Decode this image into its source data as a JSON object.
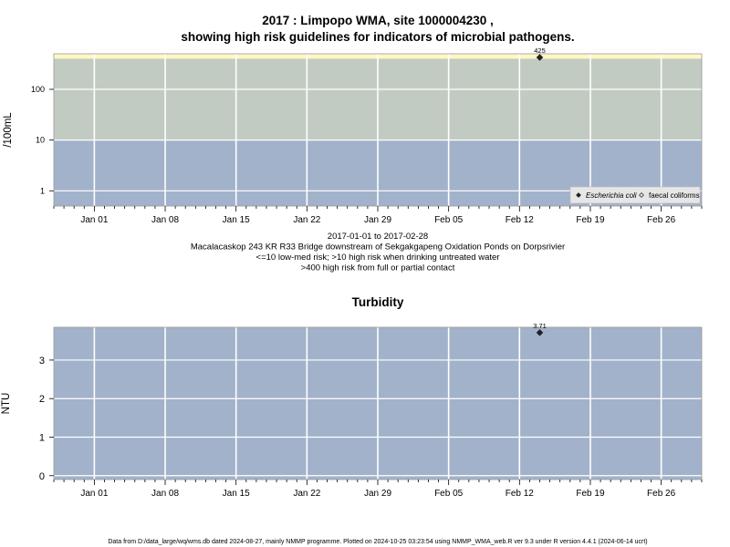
{
  "title_line1": "2017 : Limpopo WMA, site 1000004230 ,",
  "title_line2": "showing high risk guidelines for indicators of microbial pathogens.",
  "footer": "Data from D:/data_large/wq/wms.db dated 2024-08-27, mainly NMMP programme. Plotted on 2024-10-25 03:23:54 using NMMP_WMA_web.R ver 9.3 under R version 4.4.1 (2024-06-14 ucrt)",
  "colors": {
    "panel_bg": "#a2b2cb",
    "band_med": "#c2cbc2",
    "band_high": "#fff7c4",
    "grid": "#ffffff",
    "point": "#222222"
  },
  "chart_data": [
    {
      "type": "scatter",
      "title": "",
      "xlabel": "",
      "ylabel": "/100mL",
      "y_scale": "log",
      "x_range": [
        "2016-12-28",
        "2017-03-02"
      ],
      "y_range_log10": [
        -0.3,
        2.7
      ],
      "x_ticks": [
        "2017-01-01",
        "2017-01-08",
        "2017-01-15",
        "2017-01-22",
        "2017-01-29",
        "2017-02-05",
        "2017-02-12",
        "2017-02-19",
        "2017-02-26"
      ],
      "x_tick_labels": [
        "Jan 01",
        "Jan 08",
        "Jan 15",
        "Jan 22",
        "Jan 29",
        "Feb 05",
        "Feb 12",
        "Feb 19",
        "Feb 26"
      ],
      "y_ticks": [
        1,
        10,
        100
      ],
      "y_tick_labels": [
        "1",
        "10",
        "100"
      ],
      "bands": [
        {
          "from": null,
          "to": 10,
          "color": "#a2b2cb"
        },
        {
          "from": 10,
          "to": 400,
          "color": "#c2cbc2"
        },
        {
          "from": 400,
          "to": null,
          "color": "#fff7c4"
        }
      ],
      "grid": true,
      "legend_position": "bottom-right",
      "series": [
        {
          "name": "Escherichia coli",
          "marker": "filled-diamond",
          "points": [
            {
              "x": "2017-02-14",
              "y": 425,
              "label": "425"
            }
          ]
        },
        {
          "name": "faecal coliforms",
          "marker": "open-diamond",
          "points": []
        }
      ],
      "below_text": [
        "2017-01-01 to 2017-02-28",
        "Macalacaskop 243 KR R33 Bridge downstream of Sekgakgapeng Oxidation Ponds on Dorpsrivier",
        "<=10 low-med risk; >10 high risk when drinking untreated water",
        ">400 high risk from full or partial contact"
      ]
    },
    {
      "type": "scatter",
      "title": "Turbidity",
      "xlabel": "",
      "ylabel": "NTU",
      "y_scale": "linear",
      "x_range": [
        "2016-12-28",
        "2017-03-02"
      ],
      "y_range": [
        -0.1,
        3.85
      ],
      "x_ticks": [
        "2017-01-01",
        "2017-01-08",
        "2017-01-15",
        "2017-01-22",
        "2017-01-29",
        "2017-02-05",
        "2017-02-12",
        "2017-02-19",
        "2017-02-26"
      ],
      "x_tick_labels": [
        "Jan 01",
        "Jan 08",
        "Jan 15",
        "Jan 22",
        "Jan 29",
        "Feb 05",
        "Feb 12",
        "Feb 19",
        "Feb 26"
      ],
      "y_ticks": [
        0,
        1,
        2,
        3
      ],
      "y_tick_labels": [
        "0",
        "1",
        "2",
        "3"
      ],
      "grid": true,
      "series": [
        {
          "marker": "filled-diamond",
          "points": [
            {
              "x": "2017-02-14",
              "y": 3.71,
              "label": "3.71"
            }
          ]
        }
      ]
    }
  ]
}
